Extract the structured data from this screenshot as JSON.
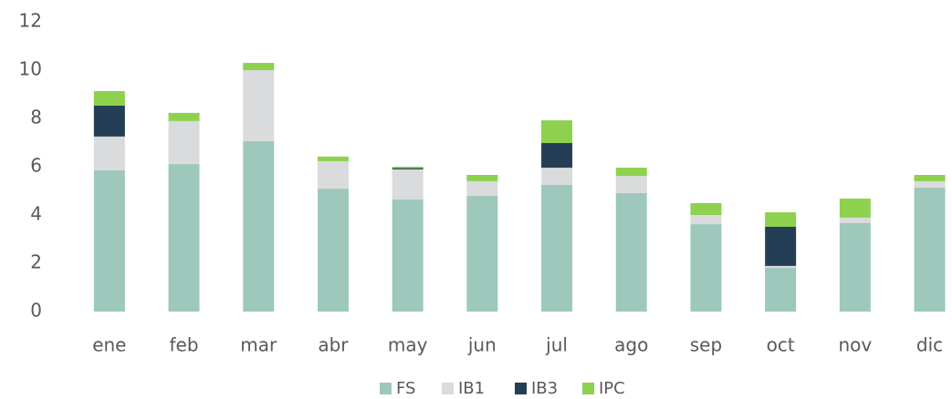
{
  "chart_data": {
    "type": "stacked_bar",
    "categories": [
      "ene",
      "feb",
      "mar",
      "abr",
      "may",
      "jun",
      "jul",
      "ago",
      "sep",
      "oct",
      "nov",
      "dic"
    ],
    "series": [
      {
        "name": "FS",
        "color": "#9dc8bb",
        "values": [
          5.85,
          6.11,
          7.06,
          5.09,
          4.64,
          4.79,
          5.25,
          4.91,
          3.62,
          1.81,
          3.66,
          5.13
        ]
      },
      {
        "name": "IB1",
        "color": "#d9dbdc",
        "values": [
          1.4,
          1.78,
          2.94,
          1.14,
          1.25,
          0.61,
          0.71,
          0.71,
          0.38,
          0.08,
          0.23,
          0.27
        ]
      },
      {
        "name": "IB3",
        "color": "#243f55",
        "values": [
          1.28,
          0,
          0,
          0,
          0.05,
          0,
          1.02,
          0,
          0,
          1.62,
          0,
          0
        ]
      },
      {
        "name": "IPC",
        "color": "#8dd14f",
        "values": [
          0.6,
          0.34,
          0.3,
          0.19,
          0.06,
          0.26,
          0.94,
          0.34,
          0.49,
          0.6,
          0.79,
          0.26
        ]
      }
    ],
    "ylim": [
      0,
      12
    ],
    "yticks": [
      0,
      2,
      4,
      6,
      8,
      10,
      12
    ],
    "grid": false,
    "legend": "bottom"
  }
}
